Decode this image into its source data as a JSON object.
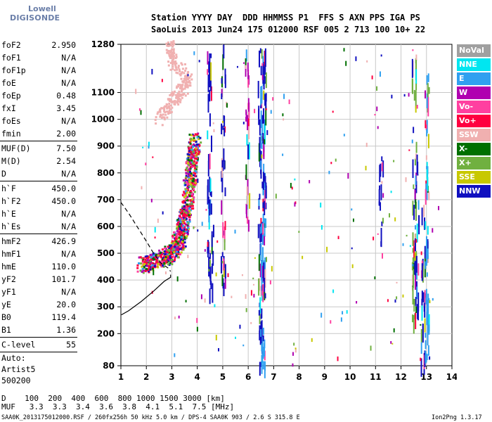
{
  "logo": {
    "line1": "Lowell",
    "line2": "DIGISONDE"
  },
  "header": {
    "line1": "Station YYYY DAY  DDD HHMMSS P1  FFS S AXN PPS IGA PS",
    "line2": "SaoLuis 2013 Jun24 175 012000 RSF 005 2 713 100 10+ 22"
  },
  "params": [
    [
      {
        "name": "foF2",
        "value": "2.950"
      },
      {
        "name": "foF1",
        "value": "N/A"
      },
      {
        "name": "foF1p",
        "value": "N/A"
      },
      {
        "name": "foE",
        "value": "N/A"
      },
      {
        "name": "foEp",
        "value": "0.48"
      },
      {
        "name": "fxI",
        "value": "3.45"
      },
      {
        "name": "foEs",
        "value": "N/A"
      },
      {
        "name": "fmin",
        "value": "2.00"
      }
    ],
    [
      {
        "name": "MUF(D)",
        "value": "7.50"
      },
      {
        "name": "M(D)",
        "value": "2.54"
      },
      {
        "name": "D",
        "value": "N/A"
      }
    ],
    [
      {
        "name": "h`F",
        "value": "450.0"
      },
      {
        "name": "h`F2",
        "value": "450.0"
      },
      {
        "name": "h`E",
        "value": "N/A"
      },
      {
        "name": "h`Es",
        "value": "N/A"
      }
    ],
    [
      {
        "name": "hmF2",
        "value": "426.9"
      },
      {
        "name": "hmF1",
        "value": "N/A"
      },
      {
        "name": "hmE",
        "value": "110.0"
      },
      {
        "name": "yF2",
        "value": "101.7"
      },
      {
        "name": "yF1",
        "value": "N/A"
      },
      {
        "name": "yE",
        "value": "20.0"
      },
      {
        "name": "B0",
        "value": "119.4"
      },
      {
        "name": "B1",
        "value": "1.36"
      }
    ],
    [
      {
        "name": "C-level",
        "value": "55"
      }
    ]
  ],
  "auto": {
    "label": "Auto:",
    "artist": "Artist5",
    "version": "500200"
  },
  "legend": [
    {
      "label": "NoVal",
      "color": "#a0a0a0"
    },
    {
      "label": "NNE",
      "color": "#00e6f0"
    },
    {
      "label": "E",
      "color": "#30a0f0"
    },
    {
      "label": "W",
      "color": "#b000b0"
    },
    {
      "label": "Vo-",
      "color": "#ff40a0"
    },
    {
      "label": "Vo+",
      "color": "#ff0040"
    },
    {
      "label": "SSW",
      "color": "#f0b0b0"
    },
    {
      "label": "X-",
      "color": "#007000"
    },
    {
      "label": "X+",
      "color": "#70b040"
    },
    {
      "label": "SSE",
      "color": "#c8c800"
    },
    {
      "label": "NNW",
      "color": "#1010c0"
    }
  ],
  "bottom": {
    "d_row": "D    100  200  400  600  800 1000 1500 3000 [km]",
    "muf_row": "MUF   3.3  3.3  3.4  3.6  3.8  4.1  5.1  7.5 [MHz]",
    "footer": "SAA0K_2013175012000.RSF / 260fx256h 50 kHz 5.0 km / DPS-4 SAA0K 903 / 2.6 S 315.8 E",
    "version": "Ion2Png 1.3.17"
  },
  "chart_data": {
    "type": "scatter",
    "xlim": [
      1,
      14
    ],
    "ylim": [
      80,
      1280
    ],
    "x_ticks": [
      1,
      2,
      3,
      4,
      5,
      6,
      7,
      8,
      9,
      10,
      11,
      12,
      13,
      14
    ],
    "y_ticks": [
      80,
      200,
      300,
      400,
      500,
      600,
      700,
      800,
      900,
      1000,
      1100,
      1280
    ],
    "grid": true,
    "profile_solid": [
      [
        1.02,
        270
      ],
      [
        1.3,
        285
      ],
      [
        1.8,
        320
      ],
      [
        2.3,
        360
      ],
      [
        2.7,
        395
      ],
      [
        2.95,
        410
      ],
      [
        2.95,
        420
      ]
    ],
    "profile_dashed": [
      [
        1.0,
        690
      ],
      [
        1.3,
        650
      ],
      [
        1.7,
        590
      ],
      [
        2.0,
        545
      ],
      [
        2.25,
        505
      ],
      [
        2.55,
        465
      ],
      [
        2.85,
        445
      ],
      [
        2.95,
        432
      ]
    ],
    "o_trace_base": [
      [
        1.7,
        460
      ],
      [
        2.2,
        470
      ],
      [
        2.7,
        490
      ],
      [
        3.0,
        520
      ],
      [
        3.2,
        560
      ],
      [
        3.35,
        620
      ],
      [
        3.5,
        700
      ],
      [
        3.6,
        780
      ],
      [
        3.7,
        860
      ],
      [
        3.8,
        930
      ]
    ],
    "ssw_cloud": [
      [
        2.4,
        1000
      ],
      [
        2.9,
        1060
      ],
      [
        3.3,
        1100
      ],
      [
        3.6,
        1150
      ],
      [
        3.0,
        1220
      ],
      [
        2.9,
        1280
      ]
    ],
    "vertical_streaks": [
      {
        "x": 4.45,
        "y0": 360,
        "y1": 1280,
        "color": "#1010c0"
      },
      {
        "x": 4.55,
        "y0": 380,
        "y1": 620,
        "color": "#1010c0"
      },
      {
        "x": 5.0,
        "y0": 380,
        "y1": 1280,
        "color": "#1010c0"
      },
      {
        "x": 5.95,
        "y0": 600,
        "y1": 1280,
        "color": "#b000b0"
      },
      {
        "x": 6.45,
        "y0": 90,
        "y1": 1280,
        "color": "#1010c0"
      },
      {
        "x": 6.55,
        "y0": 90,
        "y1": 1280,
        "color": "#30a0f0"
      },
      {
        "x": 6.6,
        "y0": 300,
        "y1": 1280,
        "color": "#1010c0"
      },
      {
        "x": 11.2,
        "y0": 540,
        "y1": 880,
        "color": "#1010c0"
      },
      {
        "x": 12.5,
        "y0": 260,
        "y1": 1280,
        "color": "#70b040"
      },
      {
        "x": 12.6,
        "y0": 260,
        "y1": 900,
        "color": "#1010c0"
      },
      {
        "x": 12.85,
        "y0": 80,
        "y1": 700,
        "color": "#1010c0"
      },
      {
        "x": 13.0,
        "y0": 90,
        "y1": 1280,
        "color": "#30a0f0"
      }
    ]
  }
}
